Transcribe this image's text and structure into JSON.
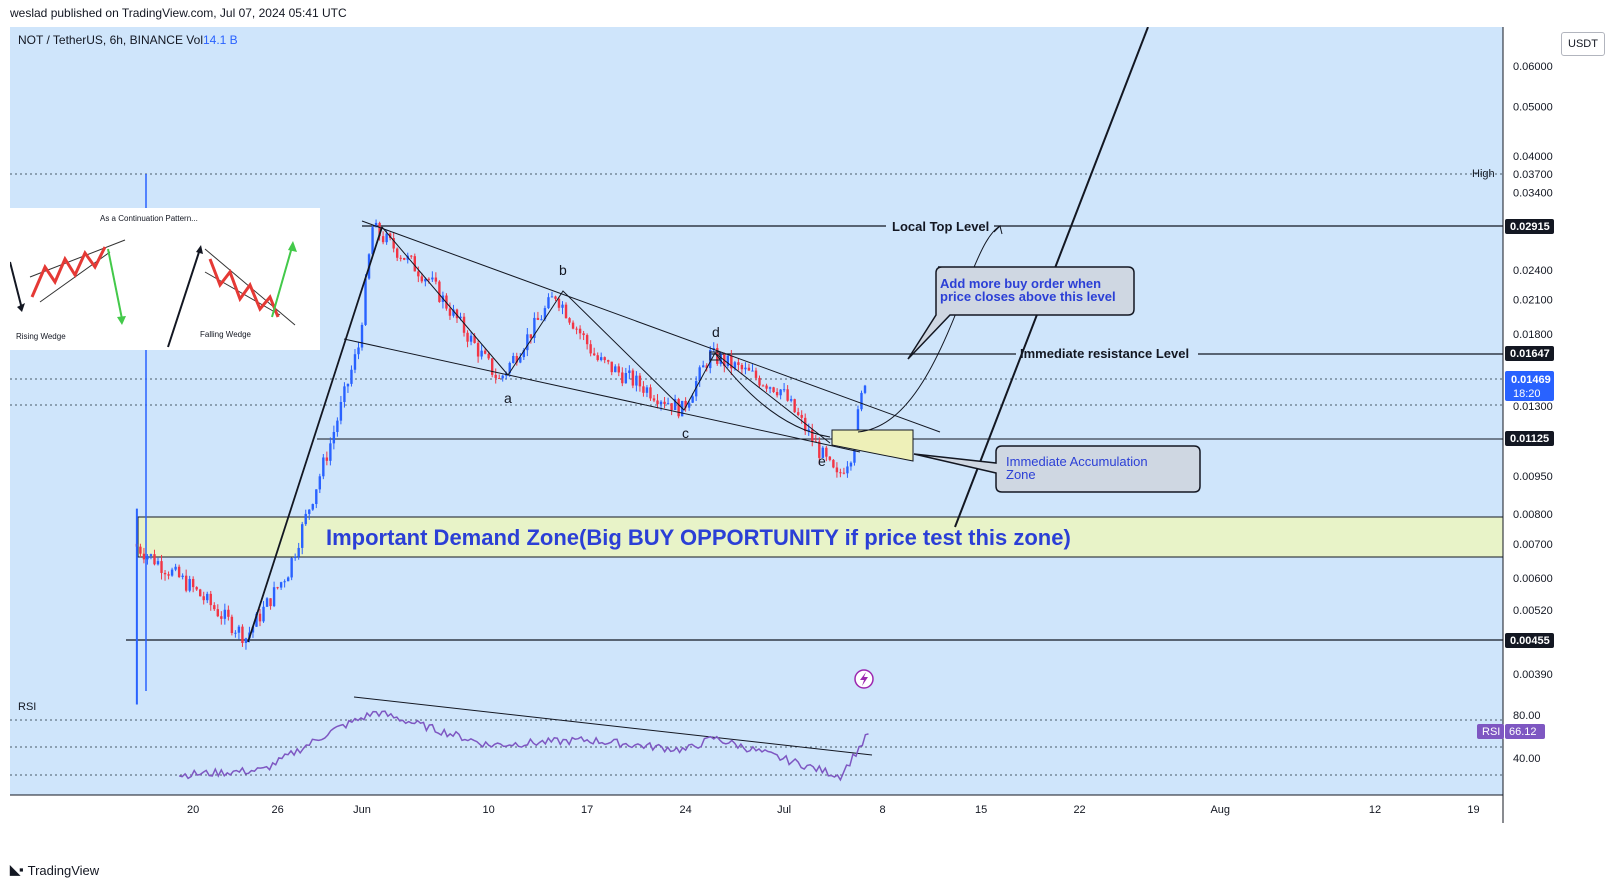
{
  "header": {
    "published_by": "weslad published on TradingView.com, Jul 07, 2024 05:41 UTC"
  },
  "legend": {
    "symbol": "NOT / TetherUS, 6h, BINANCE",
    "vol_label": "Vol",
    "vol_value": "14.1 B"
  },
  "price_axis": {
    "unit": "USDT",
    "ticks": [
      "0.06000",
      "0.05000",
      "0.04000",
      "0.03400",
      "0.02400",
      "0.02100",
      "0.01800",
      "0.01300",
      "0.00950",
      "0.00800",
      "0.00700",
      "0.00600",
      "0.00520",
      "0.00390"
    ],
    "high_label": "High",
    "high_value": "0.03700",
    "level_labels": [
      "0.02915",
      "0.01647",
      "0.01125",
      "0.00455"
    ],
    "current_price": "0.01469",
    "countdown": "18:20"
  },
  "time_axis": {
    "ticks": [
      "20",
      "26",
      "Jun",
      "10",
      "17",
      "24",
      "Jul",
      "8",
      "15",
      "22",
      "Aug",
      "12",
      "19"
    ]
  },
  "rsi": {
    "label": "RSI",
    "ticks": [
      "80.00",
      "40.00"
    ],
    "badge_label": "RSI",
    "badge_value": "66.12"
  },
  "annotations": {
    "local_top": "Local Top Level",
    "immediate_resistance": "Immediate resistance Level",
    "buy_note_line1": "Add more buy order when",
    "buy_note_line2": "price closes above this level",
    "accum_line1": "Immediate Accumulation",
    "accum_line2": "Zone",
    "demand_zone": "Important Demand Zone(Big BUY OPPORTUNITY if price test this zone)",
    "wave_a": "a",
    "wave_b": "b",
    "wave_c": "c",
    "wave_d": "d",
    "wave_e": "e"
  },
  "inset": {
    "title": "As a Continuation Pattern...",
    "rising": "Rising Wedge",
    "falling": "Falling Wedge"
  },
  "footer": {
    "brand": "TradingView"
  },
  "colors": {
    "background": "#cfe5fb",
    "up": "#2962ff",
    "down": "#f23645",
    "rsi_line": "#7e57c2",
    "zone_fill": "#e8f3c8",
    "annotation_blue": "#2b3fd6"
  },
  "chart_data": {
    "type": "candlestick",
    "title": "NOT / TetherUS, 6h, BINANCE",
    "y_scale": "log",
    "ylim": [
      0.0033,
      0.07
    ],
    "levels": {
      "local_top": 0.02915,
      "immediate_resistance": 0.01647,
      "accumulation_top": 0.01125,
      "demand_zone": [
        0.0066,
        0.0082
      ],
      "low": 0.00455,
      "all_time_high": 0.037
    },
    "approx_path": [
      {
        "date": "May 16",
        "price": 0.007
      },
      {
        "date": "May 20",
        "price": 0.0058
      },
      {
        "date": "May 24",
        "price": 0.0046
      },
      {
        "date": "May 27",
        "price": 0.0062
      },
      {
        "date": "May 30",
        "price": 0.011
      },
      {
        "date": "Jun 1",
        "price": 0.017
      },
      {
        "date": "Jun 2",
        "price": 0.029
      },
      {
        "date": "Jun 6",
        "price": 0.023
      },
      {
        "date": "Jun 11",
        "price": 0.0146
      },
      {
        "date": "Jun 15",
        "price": 0.0215
      },
      {
        "date": "Jun 18",
        "price": 0.016
      },
      {
        "date": "Jun 24",
        "price": 0.0128
      },
      {
        "date": "Jun 26",
        "price": 0.0164
      },
      {
        "date": "Jul 1",
        "price": 0.014
      },
      {
        "date": "Jul 5",
        "price": 0.0094
      },
      {
        "date": "Jul 6",
        "price": 0.0105
      },
      {
        "date": "Jul 7",
        "price": 0.0147
      }
    ],
    "rsi_path": [
      {
        "date": "May 19",
        "value": 25
      },
      {
        "date": "May 25",
        "value": 30
      },
      {
        "date": "May 30",
        "value": 70
      },
      {
        "date": "Jun 2",
        "value": 88
      },
      {
        "date": "Jun 10",
        "value": 55
      },
      {
        "date": "Jun 17",
        "value": 60
      },
      {
        "date": "Jun 24",
        "value": 50
      },
      {
        "date": "Jun 26",
        "value": 62
      },
      {
        "date": "Jul 5",
        "value": 24
      },
      {
        "date": "Jul 7",
        "value": 66.12
      }
    ]
  }
}
